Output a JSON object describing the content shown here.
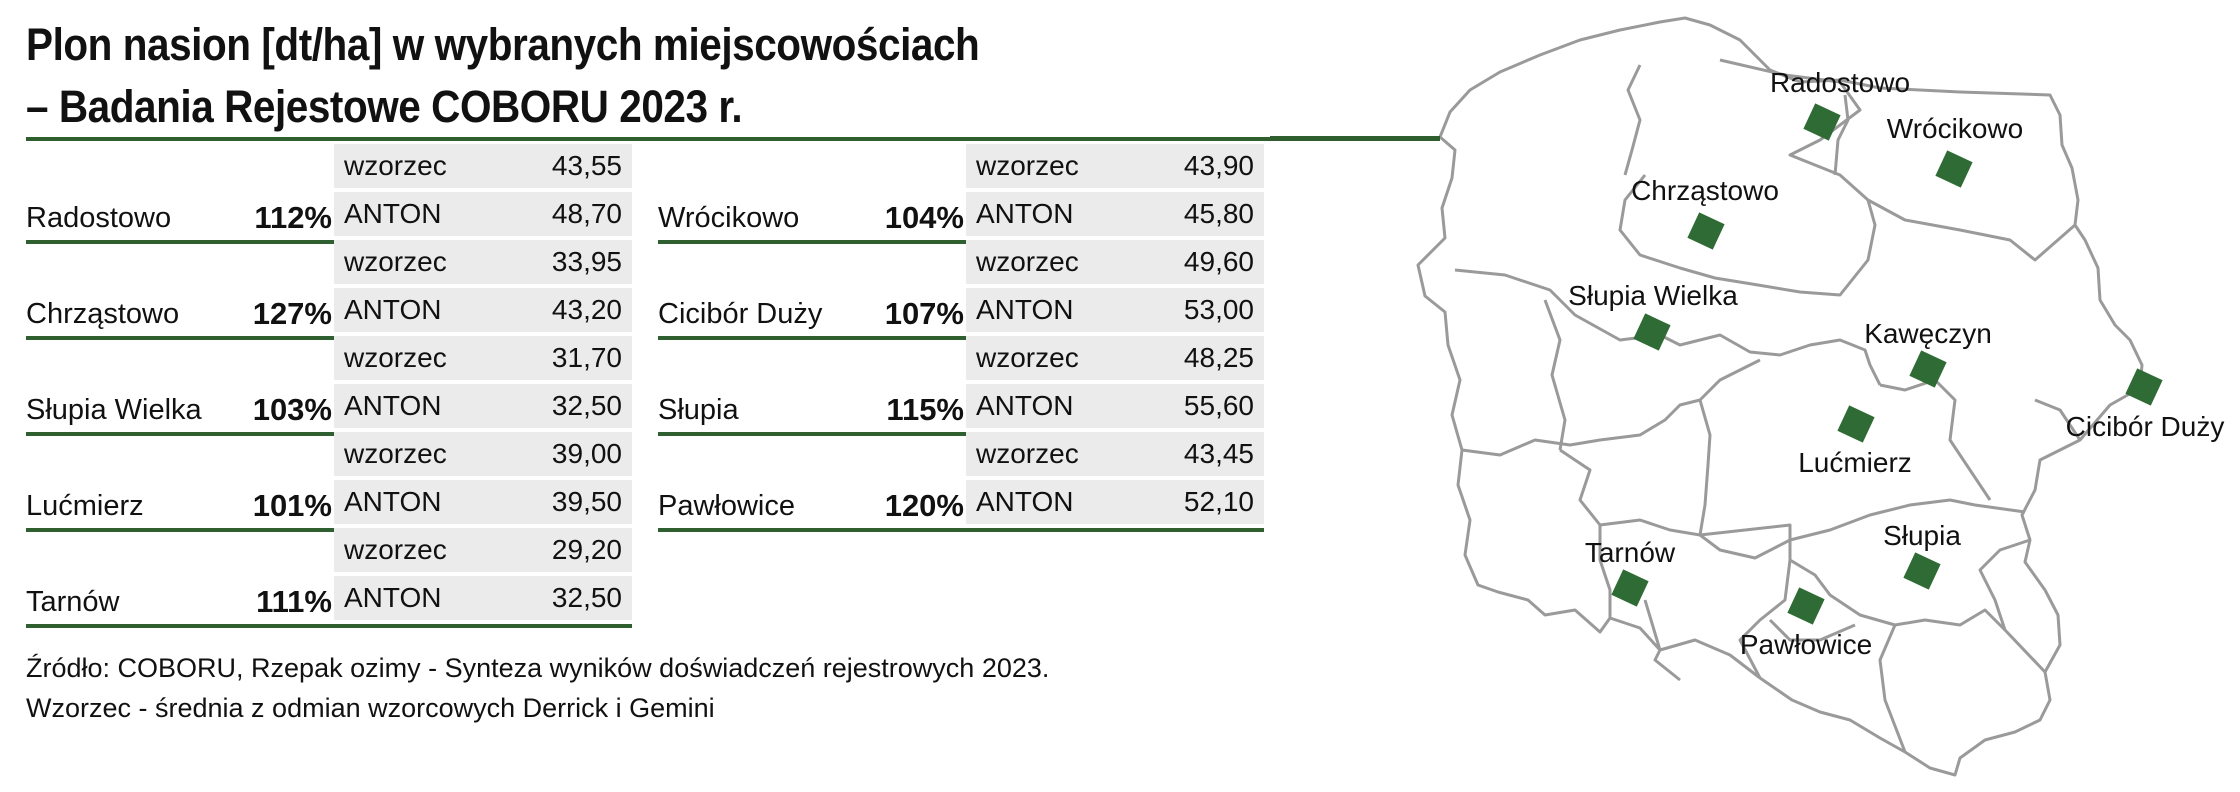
{
  "title": {
    "line1": "Plon nasion [dt/ha] w wybranych miejscowościach",
    "line2": "– Badania Rejestowe COBORU 2023 r."
  },
  "row_labels": {
    "standard": "wzorzec",
    "variety": "ANTON"
  },
  "left_table": [
    {
      "place": "Radostowo",
      "percent": "112%",
      "wzorzec": "43,55",
      "anton": "48,70"
    },
    {
      "place": "Chrząstowo",
      "percent": "127%",
      "wzorzec": "33,95",
      "anton": "43,20"
    },
    {
      "place": "Słupia Wielka",
      "percent": "103%",
      "wzorzec": "31,70",
      "anton": "32,50"
    },
    {
      "place": "Lućmierz",
      "percent": "101%",
      "wzorzec": "39,00",
      "anton": "39,50"
    },
    {
      "place": "Tarnów",
      "percent": "111%",
      "wzorzec": "29,20",
      "anton": "32,50"
    }
  ],
  "right_table": [
    {
      "place": "Wrócikowo",
      "percent": "104%",
      "wzorzec": "43,90",
      "anton": "45,80"
    },
    {
      "place": "Cicibór Duży",
      "percent": "107%",
      "wzorzec": "49,60",
      "anton": "53,00"
    },
    {
      "place": "Słupia",
      "percent": "115%",
      "wzorzec": "48,25",
      "anton": "55,60"
    },
    {
      "place": "Pawłowice",
      "percent": "120%",
      "wzorzec": "43,45",
      "anton": "52,10"
    }
  ],
  "notes": {
    "source": "Źródło: COBORU, Rzepak ozimy - Synteza wyników doświadczeń rejestrowych 2023.",
    "definition": "Wzorzec - średnia z odmian wzorcowych Derrick i Gemini"
  },
  "map": {
    "marker_color": "#2f6b34",
    "labels": {
      "radostowo": "Radostowo",
      "wrocikowo": "Wrócikowo",
      "chrzastowo": "Chrząstowo",
      "slupia_wielka": "Słupia Wielka",
      "kaweczyn": "Kawęczyn",
      "cicibor": "Cicibór Duży",
      "lucmierz": "Lućmierz",
      "slupia": "Słupia",
      "tarnow": "Tarnów",
      "pawlowice": "Pawłowice"
    }
  }
}
